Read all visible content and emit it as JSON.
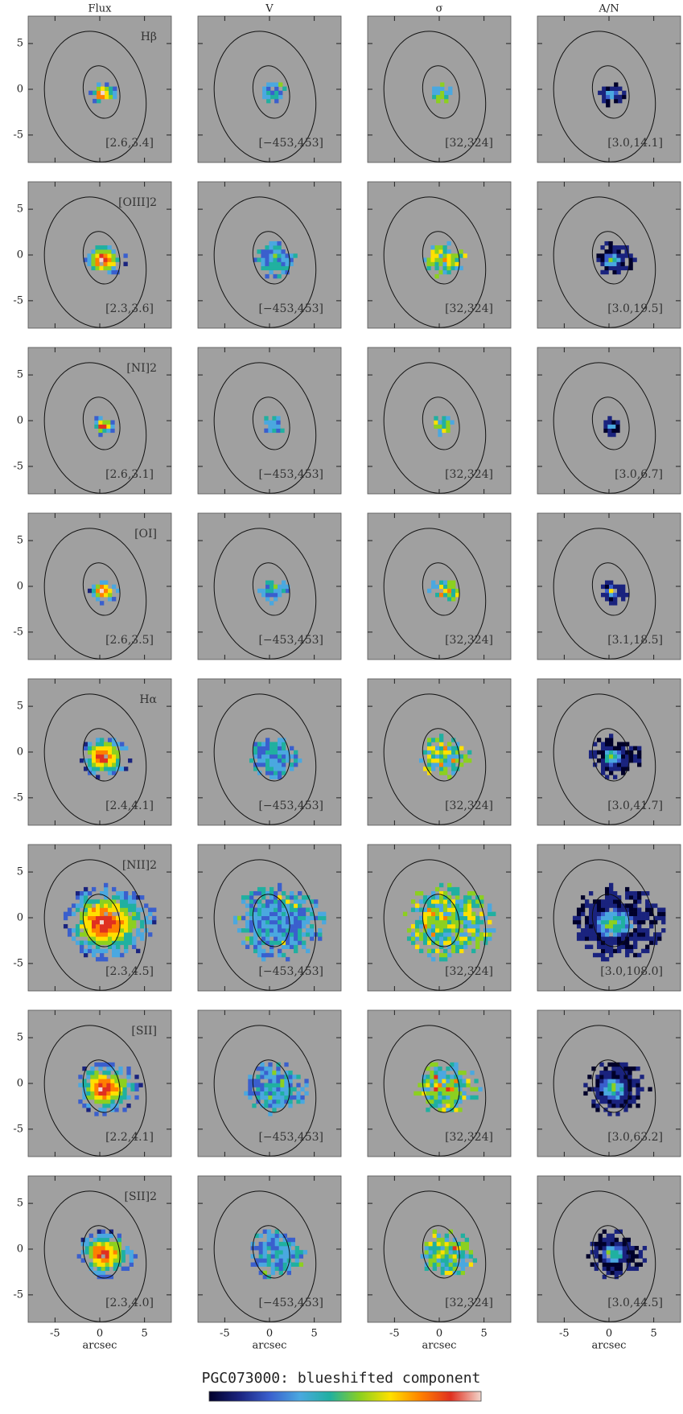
{
  "chart_data": {
    "type": "map-grid",
    "title": "PGC073000: blueshifted component",
    "columns": [
      "Flux",
      "V",
      "σ",
      "A/N"
    ],
    "rows": [
      {
        "line": "Hβ",
        "ranges": [
          "[2.6,3.4]",
          "[−453,453]",
          "[32,324]",
          "[3.0,14.1]"
        ]
      },
      {
        "line": "[OIII]2",
        "ranges": [
          "[2.3,3.6]",
          "[−453,453]",
          "[32,324]",
          "[3.0,19.5]"
        ]
      },
      {
        "line": "[NI]2",
        "ranges": [
          "[2.6,3.1]",
          "[−453,453]",
          "[32,324]",
          "[3.0,6.7]"
        ]
      },
      {
        "line": "[OI]",
        "ranges": [
          "[2.6,3.5]",
          "[−453,453]",
          "[32,324]",
          "[3.1,18.5]"
        ]
      },
      {
        "line": "Hα",
        "ranges": [
          "[2.4,4.1]",
          "[−453,453]",
          "[32,324]",
          "[3.0,41.7]"
        ]
      },
      {
        "line": "[NII]2",
        "ranges": [
          "[2.3,4.5]",
          "[−453,453]",
          "[32,324]",
          "[3.0,108.0]"
        ]
      },
      {
        "line": "[SII]",
        "ranges": [
          "[2.2,4.1]",
          "[−453,453]",
          "[32,324]",
          "[3.0,63.2]"
        ]
      },
      {
        "line": "[SII]2",
        "ranges": [
          "[2.3,4.0]",
          "[−453,453]",
          "[32,324]",
          "[3.0,44.5]"
        ]
      }
    ],
    "xlabel": "arcsec",
    "xlim": [
      -8,
      8
    ],
    "ylim": [
      -8,
      8
    ],
    "xticks": [
      -5,
      0,
      5
    ],
    "yticks": [
      -5,
      0,
      5
    ],
    "background": "#a0a0a0",
    "colormap": [
      "#00002a",
      "#1a237e",
      "#3a5fcd",
      "#4aa8e0",
      "#20b0a0",
      "#8cd020",
      "#ffe000",
      "#ff8000",
      "#e03020",
      "#f2d6cc"
    ]
  }
}
